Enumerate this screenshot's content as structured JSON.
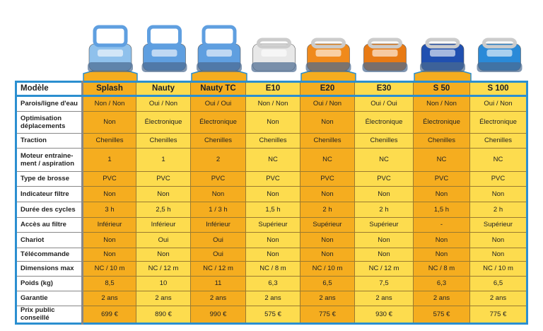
{
  "colors": {
    "orange": "#f5ad1f",
    "yellow": "#fddc4e",
    "border": "#2b8fd0"
  },
  "header_label": "Modèle",
  "models": [
    {
      "name": "Splash",
      "robot_color": "#8fc1ec",
      "highlight": true
    },
    {
      "name": "Nauty",
      "robot_color": "#5f9fe0",
      "highlight": false
    },
    {
      "name": "Nauty TC",
      "robot_color": "#5f9fe0",
      "highlight": true
    },
    {
      "name": "E10",
      "robot_color": "#e8e8e8",
      "highlight": false
    },
    {
      "name": "E20",
      "robot_color": "#f08a1c",
      "highlight": true
    },
    {
      "name": "E30",
      "robot_color": "#e87a14",
      "highlight": false
    },
    {
      "name": "S 50",
      "robot_color": "#2050b0",
      "highlight": true
    },
    {
      "name": "S 100",
      "robot_color": "#2a8ad8",
      "highlight": false
    }
  ],
  "rows": [
    {
      "label": "Parois/ligne d'eau",
      "values": [
        "Non / Non",
        "Oui / Non",
        "Oui / Oui",
        "Non / Non",
        "Oui / Non",
        "Oui / Oui",
        "Non / Non",
        "Oui / Non"
      ]
    },
    {
      "label": "Optimisation déplacements",
      "values": [
        "Non",
        "Électronique",
        "Électronique",
        "Non",
        "Non",
        "Électronique",
        "Électronique",
        "Électronique"
      ]
    },
    {
      "label": "Traction",
      "values": [
        "Chenilles",
        "Chenilles",
        "Chenilles",
        "Chenilles",
        "Chenilles",
        "Chenilles",
        "Chenilles",
        "Chenilles"
      ]
    },
    {
      "label": "Moteur entraine-ment / aspiration",
      "values": [
        "1",
        "1",
        "2",
        "NC",
        "NC",
        "NC",
        "NC",
        "NC"
      ]
    },
    {
      "label": "Type de brosse",
      "values": [
        "PVC",
        "PVC",
        "PVC",
        "PVC",
        "PVC",
        "PVC",
        "PVC",
        "PVC"
      ]
    },
    {
      "label": "Indicateur filtre",
      "values": [
        "Non",
        "Non",
        "Non",
        "Non",
        "Non",
        "Non",
        "Non",
        "Non"
      ]
    },
    {
      "label": "Durée des cycles",
      "values": [
        "3 h",
        "2,5 h",
        "1 / 3 h",
        "1,5 h",
        "2 h",
        "2 h",
        "1,5 h",
        "2 h"
      ]
    },
    {
      "label": "Accès au filtre",
      "values": [
        "Inférieur",
        "Inférieur",
        "Inférieur",
        "Supérieur",
        "Supérieur",
        "Supérieur",
        "-",
        "Supérieur"
      ]
    },
    {
      "label": "Chariot",
      "values": [
        "Non",
        "Oui",
        "Oui",
        "Non",
        "Non",
        "Non",
        "Non",
        "Non"
      ]
    },
    {
      "label": "Télécommande",
      "values": [
        "Non",
        "Non",
        "Oui",
        "Non",
        "Non",
        "Non",
        "Non",
        "Non"
      ]
    },
    {
      "label": "Dimensions max",
      "values": [
        "NC / 10 m",
        "NC / 12 m",
        "NC / 12 m",
        "NC / 8 m",
        "NC / 10 m",
        "NC / 12 m",
        "NC / 8 m",
        "NC / 10 m"
      ]
    },
    {
      "label": "Poids (kg)",
      "values": [
        "8,5",
        "10",
        "11",
        "6,3",
        "6,5",
        "7,5",
        "6,3",
        "6,5"
      ]
    },
    {
      "label": "Garantie",
      "values": [
        "2 ans",
        "2 ans",
        "2 ans",
        "2 ans",
        "2 ans",
        "2 ans",
        "2 ans",
        "2 ans"
      ]
    },
    {
      "label": "Prix public conseillé",
      "values": [
        "699 €",
        "890 €",
        "990 €",
        "575 €",
        "775 €",
        "930 €",
        "575 €",
        "775 €"
      ]
    }
  ]
}
